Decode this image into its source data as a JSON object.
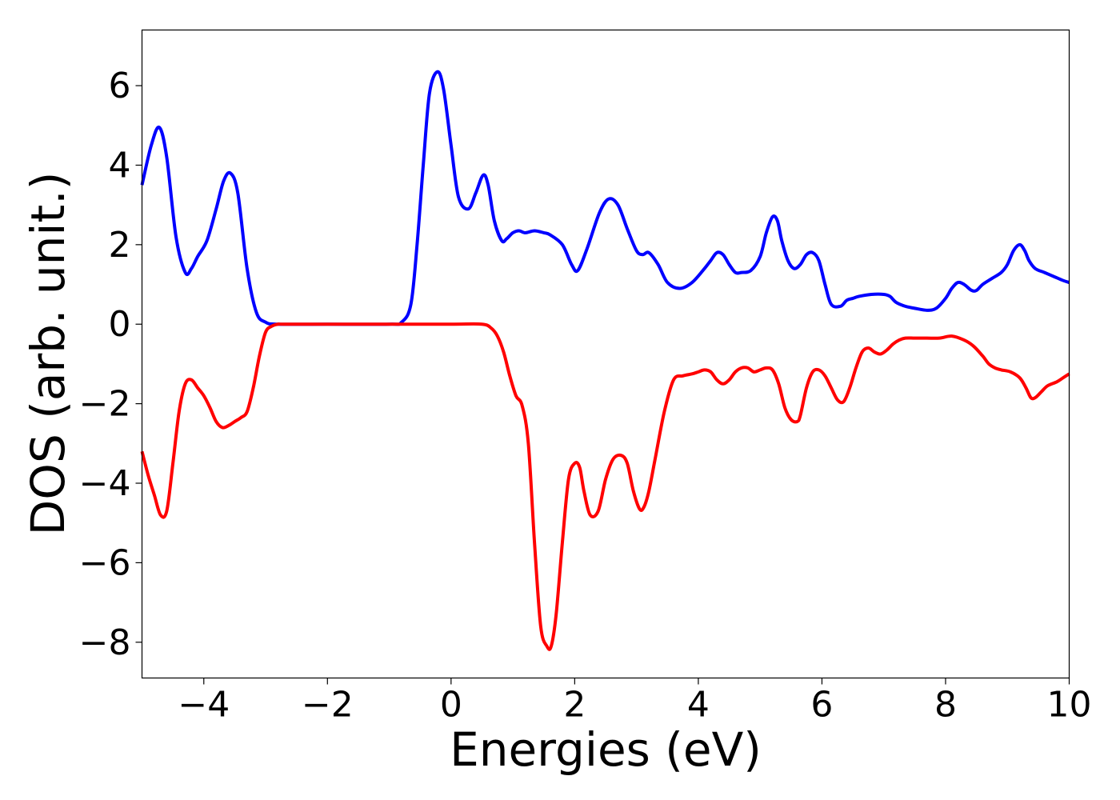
{
  "chart_data": {
    "type": "line",
    "title": "",
    "xlabel": "Energies (eV)",
    "ylabel": "DOS (arb. unit.)",
    "xlim": [
      -5,
      10
    ],
    "ylim": [
      -8.9,
      7.4
    ],
    "xticks": [
      -4,
      -2,
      0,
      2,
      4,
      6,
      8,
      10
    ],
    "xtick_labels": [
      "−4",
      "−2",
      "0",
      "2",
      "4",
      "6",
      "8",
      "10"
    ],
    "yticks": [
      6,
      4,
      2,
      0,
      -2,
      -4,
      -6,
      -8
    ],
    "ytick_labels": [
      "6",
      "4",
      "2",
      "0",
      "−2",
      "−4",
      "−6",
      "−8"
    ],
    "grid": false,
    "legend": "none",
    "series": [
      {
        "color": "#0000ff",
        "x": [
          -5.0,
          -4.85,
          -4.72,
          -4.6,
          -4.45,
          -4.3,
          -4.2,
          -4.1,
          -3.95,
          -3.8,
          -3.68,
          -3.57,
          -3.45,
          -3.3,
          -3.15,
          -3.0,
          -2.8,
          -2.0,
          -1.0,
          -0.8,
          -0.65,
          -0.55,
          -0.45,
          -0.35,
          -0.22,
          -0.12,
          0.0,
          0.12,
          0.28,
          0.4,
          0.52,
          0.6,
          0.7,
          0.82,
          0.9,
          1.0,
          1.1,
          1.2,
          1.35,
          1.5,
          1.6,
          1.8,
          1.95,
          2.05,
          2.2,
          2.4,
          2.55,
          2.7,
          2.85,
          3.0,
          3.1,
          3.2,
          3.35,
          3.5,
          3.7,
          3.9,
          4.1,
          4.2,
          4.3,
          4.4,
          4.5,
          4.6,
          4.7,
          4.85,
          5.0,
          5.1,
          5.2,
          5.28,
          5.35,
          5.45,
          5.55,
          5.65,
          5.75,
          5.85,
          5.95,
          6.05,
          6.15,
          6.3,
          6.4,
          6.5,
          6.6,
          6.8,
          7.0,
          7.1,
          7.2,
          7.35,
          7.5,
          7.7,
          7.85,
          8.0,
          8.1,
          8.2,
          8.3,
          8.42,
          8.5,
          8.6,
          8.75,
          8.9,
          9.0,
          9.1,
          9.2,
          9.28,
          9.35,
          9.45,
          9.6,
          9.75,
          9.9,
          10.0
        ],
        "values": [
          3.5,
          4.5,
          4.95,
          4.2,
          2.2,
          1.3,
          1.4,
          1.7,
          2.1,
          2.9,
          3.6,
          3.8,
          3.3,
          1.4,
          0.3,
          0.05,
          0.0,
          0.0,
          0.0,
          0.05,
          0.5,
          2.0,
          4.0,
          5.8,
          6.35,
          5.9,
          4.5,
          3.2,
          2.9,
          3.3,
          3.75,
          3.5,
          2.6,
          2.1,
          2.15,
          2.3,
          2.35,
          2.3,
          2.35,
          2.3,
          2.25,
          2.0,
          1.5,
          1.35,
          1.9,
          2.8,
          3.15,
          3.0,
          2.4,
          1.85,
          1.75,
          1.8,
          1.5,
          1.05,
          0.9,
          1.05,
          1.4,
          1.6,
          1.8,
          1.75,
          1.5,
          1.3,
          1.3,
          1.35,
          1.7,
          2.3,
          2.7,
          2.6,
          2.1,
          1.6,
          1.4,
          1.5,
          1.75,
          1.8,
          1.6,
          1.0,
          0.5,
          0.45,
          0.6,
          0.65,
          0.7,
          0.75,
          0.75,
          0.7,
          0.55,
          0.45,
          0.4,
          0.35,
          0.4,
          0.65,
          0.9,
          1.05,
          1.0,
          0.85,
          0.85,
          1.0,
          1.15,
          1.3,
          1.5,
          1.85,
          2.0,
          1.85,
          1.6,
          1.4,
          1.3,
          1.2,
          1.1,
          1.05
        ]
      },
      {
        "color": "#ff0000",
        "x": [
          -5.0,
          -4.9,
          -4.8,
          -4.7,
          -4.6,
          -4.5,
          -4.4,
          -4.3,
          -4.2,
          -4.1,
          -4.0,
          -3.9,
          -3.8,
          -3.7,
          -3.6,
          -3.5,
          -3.4,
          -3.3,
          -3.2,
          -3.1,
          -3.0,
          -2.9,
          -2.8,
          -2.7,
          -2.0,
          -1.0,
          0.0,
          0.5,
          0.65,
          0.75,
          0.85,
          0.95,
          1.05,
          1.15,
          1.25,
          1.35,
          1.45,
          1.55,
          1.62,
          1.7,
          1.8,
          1.9,
          2.0,
          2.08,
          2.15,
          2.25,
          2.38,
          2.5,
          2.62,
          2.75,
          2.85,
          2.95,
          3.05,
          3.12,
          3.2,
          3.3,
          3.45,
          3.6,
          3.75,
          3.9,
          4.0,
          4.1,
          4.2,
          4.3,
          4.4,
          4.5,
          4.6,
          4.7,
          4.8,
          4.9,
          5.0,
          5.1,
          5.2,
          5.3,
          5.4,
          5.5,
          5.6,
          5.65,
          5.75,
          5.85,
          5.95,
          6.05,
          6.15,
          6.25,
          6.35,
          6.45,
          6.55,
          6.65,
          6.75,
          6.85,
          6.95,
          7.05,
          7.15,
          7.25,
          7.35,
          7.5,
          7.7,
          7.9,
          8.1,
          8.3,
          8.45,
          8.6,
          8.7,
          8.8,
          8.9,
          9.05,
          9.2,
          9.3,
          9.38,
          9.45,
          9.55,
          9.65,
          9.8,
          9.9,
          10.0
        ],
        "values": [
          -3.2,
          -3.8,
          -4.3,
          -4.8,
          -4.7,
          -3.5,
          -2.2,
          -1.5,
          -1.4,
          -1.6,
          -1.8,
          -2.1,
          -2.45,
          -2.6,
          -2.55,
          -2.45,
          -2.35,
          -2.2,
          -1.6,
          -0.8,
          -0.2,
          -0.05,
          0.0,
          0.0,
          0.0,
          0.0,
          0.0,
          0.0,
          -0.1,
          -0.3,
          -0.7,
          -1.3,
          -1.8,
          -2.05,
          -3.0,
          -5.5,
          -7.6,
          -8.1,
          -8.1,
          -7.3,
          -5.5,
          -3.9,
          -3.5,
          -3.6,
          -4.2,
          -4.8,
          -4.7,
          -3.9,
          -3.4,
          -3.3,
          -3.5,
          -4.2,
          -4.65,
          -4.6,
          -4.2,
          -3.4,
          -2.2,
          -1.4,
          -1.3,
          -1.25,
          -1.2,
          -1.15,
          -1.2,
          -1.4,
          -1.5,
          -1.4,
          -1.2,
          -1.1,
          -1.1,
          -1.2,
          -1.15,
          -1.1,
          -1.15,
          -1.5,
          -2.1,
          -2.4,
          -2.45,
          -2.3,
          -1.6,
          -1.2,
          -1.15,
          -1.3,
          -1.6,
          -1.9,
          -1.95,
          -1.6,
          -1.1,
          -0.7,
          -0.6,
          -0.7,
          -0.75,
          -0.65,
          -0.5,
          -0.4,
          -0.35,
          -0.35,
          -0.35,
          -0.35,
          -0.3,
          -0.4,
          -0.55,
          -0.8,
          -1.0,
          -1.1,
          -1.15,
          -1.2,
          -1.35,
          -1.6,
          -1.85,
          -1.85,
          -1.7,
          -1.55,
          -1.45,
          -1.35,
          -1.25
        ]
      }
    ]
  }
}
